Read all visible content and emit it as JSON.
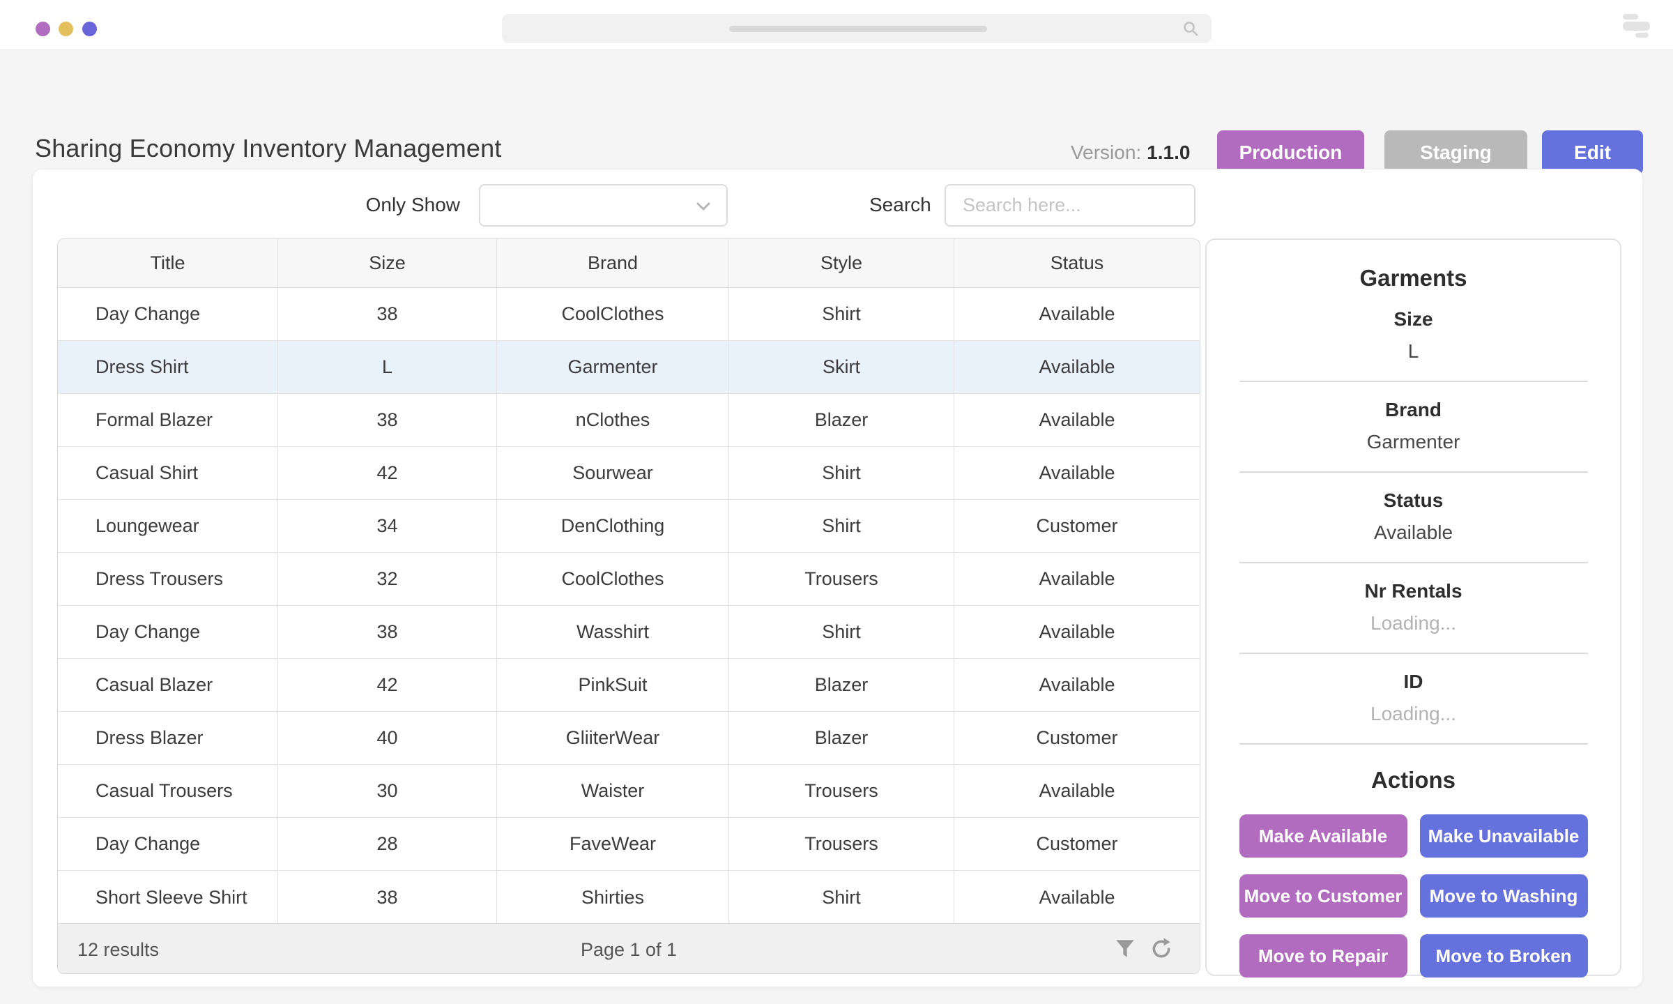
{
  "colors": {
    "accent_purple": "#b16cc0",
    "accent_blue": "#6571dd",
    "neutral_gray_button": "#b9b9b9",
    "traffic_dots": [
      "#b16cc0",
      "#e4c05c",
      "#6a66d9"
    ],
    "selected_row_bg": "#e9f1fb"
  },
  "header": {
    "title": "Sharing Economy Inventory Management",
    "version_label": "Version:",
    "version_value": "1.1.0",
    "buttons": [
      {
        "label": "Production",
        "color": "#b16cc0"
      },
      {
        "label": "Staging",
        "color": "#b9b9b9"
      },
      {
        "label": "Edit",
        "color": "#6571dd"
      }
    ]
  },
  "filters": {
    "only_show_label": "Only Show",
    "dropdown_value": "",
    "search_label": "Search",
    "search_placeholder": "Search here..."
  },
  "table": {
    "columns": [
      "Title",
      "Size",
      "Brand",
      "Style",
      "Status"
    ],
    "selected_row_index": 1,
    "rows": [
      {
        "title": "Day Change",
        "size": "38",
        "brand": "CoolClothes",
        "style": "Shirt",
        "status": "Available"
      },
      {
        "title": "Dress Shirt",
        "size": "L",
        "brand": "Garmenter",
        "style": "Skirt",
        "status": "Available"
      },
      {
        "title": "Formal Blazer",
        "size": "38",
        "brand": "nClothes",
        "style": "Blazer",
        "status": "Available"
      },
      {
        "title": "Casual Shirt",
        "size": "42",
        "brand": "Sourwear",
        "style": "Shirt",
        "status": "Available"
      },
      {
        "title": "Loungewear",
        "size": "34",
        "brand": "DenClothing",
        "style": "Shirt",
        "status": "Customer"
      },
      {
        "title": "Dress Trousers",
        "size": "32",
        "brand": "CoolClothes",
        "style": "Trousers",
        "status": "Available"
      },
      {
        "title": "Day Change",
        "size": "38",
        "brand": "Wasshirt",
        "style": "Shirt",
        "status": "Available"
      },
      {
        "title": "Casual Blazer",
        "size": "42",
        "brand": "PinkSuit",
        "style": "Blazer",
        "status": "Available"
      },
      {
        "title": "Dress Blazer",
        "size": "40",
        "brand": "GliiterWear",
        "style": "Blazer",
        "status": "Customer"
      },
      {
        "title": "Casual Trousers",
        "size": "30",
        "brand": "Waister",
        "style": "Trousers",
        "status": "Available"
      },
      {
        "title": "Day Change",
        "size": "28",
        "brand": "FaveWear",
        "style": "Trousers",
        "status": "Customer"
      },
      {
        "title": "Short Sleeve Shirt",
        "size": "38",
        "brand": "Shirties",
        "style": "Shirt",
        "status": "Available"
      }
    ],
    "footer": {
      "results_text": "12 results",
      "page_text": "Page 1 of 1",
      "icons": [
        "filter-icon",
        "refresh-icon"
      ]
    }
  },
  "panel": {
    "title": "Garments",
    "fields": [
      {
        "label": "Size",
        "value": "L",
        "muted": false
      },
      {
        "label": "Brand",
        "value": "Garmenter",
        "muted": false
      },
      {
        "label": "Status",
        "value": "Available",
        "muted": false
      },
      {
        "label": "Nr Rentals",
        "value": "Loading...",
        "muted": true
      },
      {
        "label": "ID",
        "value": "Loading...",
        "muted": true
      }
    ],
    "actions_title": "Actions",
    "action_buttons": [
      {
        "label": "Make Available",
        "color": "#b16cc0"
      },
      {
        "label": "Make Unavailable",
        "color": "#6571dd"
      },
      {
        "label": "Move to Customer",
        "color": "#b16cc0"
      },
      {
        "label": "Move to Washing",
        "color": "#6571dd"
      },
      {
        "label": "Move to Repair",
        "color": "#b16cc0"
      },
      {
        "label": "Move to Broken",
        "color": "#6571dd"
      }
    ]
  }
}
